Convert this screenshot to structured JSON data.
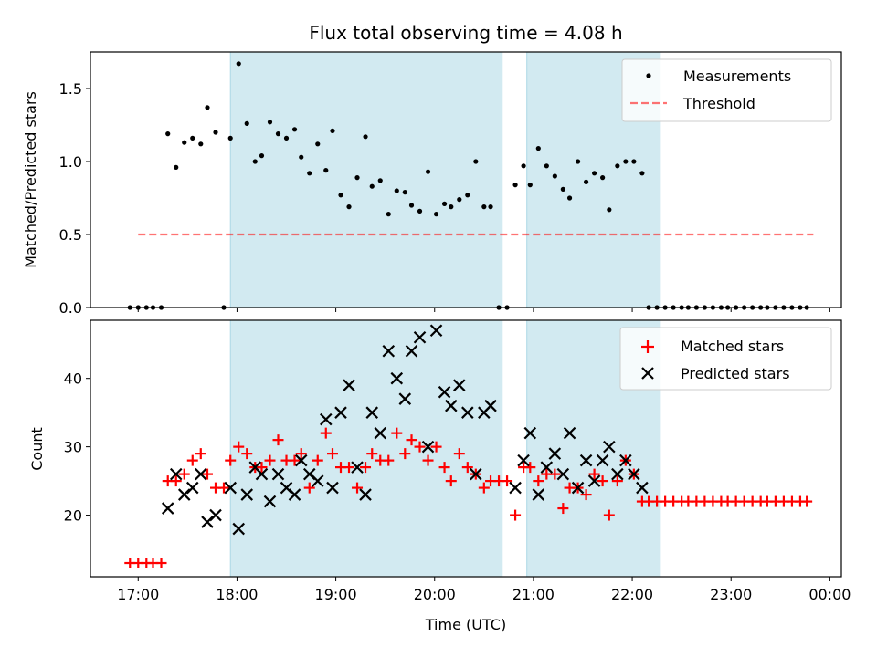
{
  "chart_data": {
    "type": "scatter",
    "title": "Flux total observing time = 4.08 h",
    "xlabel": "Time (UTC)",
    "x_unit": "hours UTC",
    "xlim": [
      "16:31",
      "00:07"
    ],
    "xticks": [
      "17:00",
      "18:00",
      "19:00",
      "20:00",
      "21:00",
      "22:00",
      "23:00",
      "00:00"
    ],
    "shaded_intervals": [
      [
        "17:56",
        "20:41"
      ],
      [
        "20:56",
        "22:17"
      ]
    ],
    "shade_color": "#add8e6",
    "panels": [
      {
        "ylabel": "Matched/Predicted stars",
        "ylim": [
          0,
          1.75
        ],
        "yticks": [
          "0.0",
          "0.5",
          "1.0",
          "1.5"
        ],
        "legend_position": "upper right",
        "threshold": {
          "name": "Threshold",
          "value": 0.5,
          "x_range": [
            "17:00",
            "23:50"
          ],
          "color": "#ff0000",
          "style": "dashed"
        },
        "series": [
          {
            "name": "Measurements",
            "color": "#000000",
            "marker": "dot",
            "points": [
              [
                "16:55",
                0
              ],
              [
                "17:00",
                0
              ],
              [
                "17:05",
                0
              ],
              [
                "17:09",
                0
              ],
              [
                "17:14",
                0
              ],
              [
                "17:18",
                1.19
              ],
              [
                "17:23",
                0.96
              ],
              [
                "17:28",
                1.13
              ],
              [
                "17:33",
                1.16
              ],
              [
                "17:38",
                1.12
              ],
              [
                "17:42",
                1.37
              ],
              [
                "17:47",
                1.2
              ],
              [
                "17:52",
                0
              ],
              [
                "17:56",
                1.16
              ],
              [
                "18:01",
                1.67
              ],
              [
                "18:06",
                1.26
              ],
              [
                "18:11",
                1.0
              ],
              [
                "18:15",
                1.04
              ],
              [
                "18:20",
                1.27
              ],
              [
                "18:25",
                1.19
              ],
              [
                "18:30",
                1.16
              ],
              [
                "18:35",
                1.22
              ],
              [
                "18:39",
                1.03
              ],
              [
                "18:44",
                0.92
              ],
              [
                "18:49",
                1.12
              ],
              [
                "18:54",
                0.94
              ],
              [
                "18:58",
                1.21
              ],
              [
                "19:03",
                0.77
              ],
              [
                "19:08",
                0.69
              ],
              [
                "19:13",
                0.89
              ],
              [
                "19:18",
                1.17
              ],
              [
                "19:22",
                0.83
              ],
              [
                "19:27",
                0.87
              ],
              [
                "19:32",
                0.64
              ],
              [
                "19:37",
                0.8
              ],
              [
                "19:42",
                0.79
              ],
              [
                "19:46",
                0.7
              ],
              [
                "19:51",
                0.66
              ],
              [
                "19:56",
                0.93
              ],
              [
                "20:01",
                0.64
              ],
              [
                "20:06",
                0.71
              ],
              [
                "20:10",
                0.69
              ],
              [
                "20:15",
                0.74
              ],
              [
                "20:20",
                0.77
              ],
              [
                "20:25",
                1.0
              ],
              [
                "20:30",
                0.69
              ],
              [
                "20:34",
                0.69
              ],
              [
                "20:39",
                0
              ],
              [
                "20:44",
                0
              ],
              [
                "20:49",
                0.84
              ],
              [
                "20:54",
                0.97
              ],
              [
                "20:58",
                0.84
              ],
              [
                "21:03",
                1.09
              ],
              [
                "21:08",
                0.97
              ],
              [
                "21:13",
                0.9
              ],
              [
                "21:18",
                0.81
              ],
              [
                "21:22",
                0.75
              ],
              [
                "21:27",
                1.0
              ],
              [
                "21:32",
                0.86
              ],
              [
                "21:37",
                0.92
              ],
              [
                "21:42",
                0.89
              ],
              [
                "21:46",
                0.67
              ],
              [
                "21:51",
                0.97
              ],
              [
                "21:56",
                1.0
              ],
              [
                "22:01",
                1.0
              ],
              [
                "22:06",
                0.92
              ],
              [
                "22:10",
                0
              ],
              [
                "22:15",
                0
              ],
              [
                "22:20",
                0
              ],
              [
                "22:25",
                0
              ],
              [
                "22:30",
                0
              ],
              [
                "22:34",
                0
              ],
              [
                "22:39",
                0
              ],
              [
                "22:44",
                0
              ],
              [
                "22:49",
                0
              ],
              [
                "22:54",
                0
              ],
              [
                "22:58",
                0
              ],
              [
                "23:03",
                0
              ],
              [
                "23:08",
                0
              ],
              [
                "23:13",
                0
              ],
              [
                "23:18",
                0
              ],
              [
                "23:22",
                0
              ],
              [
                "23:27",
                0
              ],
              [
                "23:32",
                0
              ],
              [
                "23:37",
                0
              ],
              [
                "23:42",
                0
              ],
              [
                "23:46",
                0
              ]
            ]
          }
        ]
      },
      {
        "ylabel": "Count",
        "ylim": [
          11,
          48.5
        ],
        "yticks": [
          "20",
          "30",
          "40"
        ],
        "legend_position": "upper right",
        "series": [
          {
            "name": "Matched stars",
            "color": "#ff0000",
            "marker": "plus",
            "points": [
              [
                "16:55",
                13
              ],
              [
                "17:00",
                13
              ],
              [
                "17:05",
                13
              ],
              [
                "17:09",
                13
              ],
              [
                "17:14",
                13
              ],
              [
                "17:18",
                25
              ],
              [
                "17:23",
                25
              ],
              [
                "17:28",
                26
              ],
              [
                "17:33",
                28
              ],
              [
                "17:38",
                29
              ],
              [
                "17:42",
                26
              ],
              [
                "17:47",
                24
              ],
              [
                "17:52",
                24
              ],
              [
                "17:56",
                28
              ],
              [
                "18:01",
                30
              ],
              [
                "18:06",
                29
              ],
              [
                "18:11",
                27
              ],
              [
                "18:15",
                27
              ],
              [
                "18:20",
                28
              ],
              [
                "18:25",
                31
              ],
              [
                "18:30",
                28
              ],
              [
                "18:35",
                28
              ],
              [
                "18:39",
                29
              ],
              [
                "18:44",
                24
              ],
              [
                "18:49",
                28
              ],
              [
                "18:54",
                32
              ],
              [
                "18:58",
                29
              ],
              [
                "19:03",
                27
              ],
              [
                "19:08",
                27
              ],
              [
                "19:13",
                24
              ],
              [
                "19:18",
                27
              ],
              [
                "19:22",
                29
              ],
              [
                "19:27",
                28
              ],
              [
                "19:32",
                28
              ],
              [
                "19:37",
                32
              ],
              [
                "19:42",
                29
              ],
              [
                "19:46",
                31
              ],
              [
                "19:51",
                30
              ],
              [
                "19:56",
                28
              ],
              [
                "20:01",
                30
              ],
              [
                "20:06",
                27
              ],
              [
                "20:10",
                25
              ],
              [
                "20:15",
                29
              ],
              [
                "20:20",
                27
              ],
              [
                "20:25",
                26
              ],
              [
                "20:30",
                24
              ],
              [
                "20:34",
                25
              ],
              [
                "20:39",
                25
              ],
              [
                "20:44",
                25
              ],
              [
                "20:49",
                20
              ],
              [
                "20:54",
                27
              ],
              [
                "20:58",
                27
              ],
              [
                "21:03",
                25
              ],
              [
                "21:08",
                26
              ],
              [
                "21:13",
                26
              ],
              [
                "21:18",
                21
              ],
              [
                "21:22",
                24
              ],
              [
                "21:27",
                24
              ],
              [
                "21:32",
                23
              ],
              [
                "21:37",
                26
              ],
              [
                "21:42",
                25
              ],
              [
                "21:46",
                20
              ],
              [
                "21:51",
                25
              ],
              [
                "21:56",
                28
              ],
              [
                "22:01",
                26
              ],
              [
                "22:06",
                22
              ],
              [
                "22:10",
                22
              ],
              [
                "22:15",
                22
              ],
              [
                "22:20",
                22
              ],
              [
                "22:25",
                22
              ],
              [
                "22:30",
                22
              ],
              [
                "22:34",
                22
              ],
              [
                "22:39",
                22
              ],
              [
                "22:44",
                22
              ],
              [
                "22:49",
                22
              ],
              [
                "22:54",
                22
              ],
              [
                "22:58",
                22
              ],
              [
                "23:03",
                22
              ],
              [
                "23:08",
                22
              ],
              [
                "23:13",
                22
              ],
              [
                "23:18",
                22
              ],
              [
                "23:22",
                22
              ],
              [
                "23:27",
                22
              ],
              [
                "23:32",
                22
              ],
              [
                "23:37",
                22
              ],
              [
                "23:42",
                22
              ],
              [
                "23:46",
                22
              ]
            ]
          },
          {
            "name": "Predicted stars",
            "color": "#000000",
            "marker": "x",
            "points": [
              [
                "17:18",
                21
              ],
              [
                "17:23",
                26
              ],
              [
                "17:28",
                23
              ],
              [
                "17:33",
                24
              ],
              [
                "17:38",
                26
              ],
              [
                "17:42",
                19
              ],
              [
                "17:47",
                20
              ],
              [
                "17:56",
                24
              ],
              [
                "18:01",
                18
              ],
              [
                "18:06",
                23
              ],
              [
                "18:11",
                27
              ],
              [
                "18:15",
                26
              ],
              [
                "18:20",
                22
              ],
              [
                "18:25",
                26
              ],
              [
                "18:30",
                24
              ],
              [
                "18:35",
                23
              ],
              [
                "18:39",
                28
              ],
              [
                "18:44",
                26
              ],
              [
                "18:49",
                25
              ],
              [
                "18:54",
                34
              ],
              [
                "18:58",
                24
              ],
              [
                "19:03",
                35
              ],
              [
                "19:08",
                39
              ],
              [
                "19:13",
                27
              ],
              [
                "19:18",
                23
              ],
              [
                "19:22",
                35
              ],
              [
                "19:27",
                32
              ],
              [
                "19:32",
                44
              ],
              [
                "19:37",
                40
              ],
              [
                "19:42",
                37
              ],
              [
                "19:46",
                44
              ],
              [
                "19:51",
                46
              ],
              [
                "19:56",
                30
              ],
              [
                "20:01",
                47
              ],
              [
                "20:06",
                38
              ],
              [
                "20:10",
                36
              ],
              [
                "20:15",
                39
              ],
              [
                "20:20",
                35
              ],
              [
                "20:25",
                26
              ],
              [
                "20:30",
                35
              ],
              [
                "20:34",
                36
              ],
              [
                "20:49",
                24
              ],
              [
                "20:54",
                28
              ],
              [
                "20:58",
                32
              ],
              [
                "21:03",
                23
              ],
              [
                "21:08",
                27
              ],
              [
                "21:13",
                29
              ],
              [
                "21:18",
                26
              ],
              [
                "21:22",
                32
              ],
              [
                "21:27",
                24
              ],
              [
                "21:32",
                28
              ],
              [
                "21:37",
                25
              ],
              [
                "21:42",
                28
              ],
              [
                "21:46",
                30
              ],
              [
                "21:51",
                26
              ],
              [
                "21:56",
                28
              ],
              [
                "22:01",
                26
              ],
              [
                "22:06",
                24
              ]
            ]
          }
        ]
      }
    ]
  }
}
